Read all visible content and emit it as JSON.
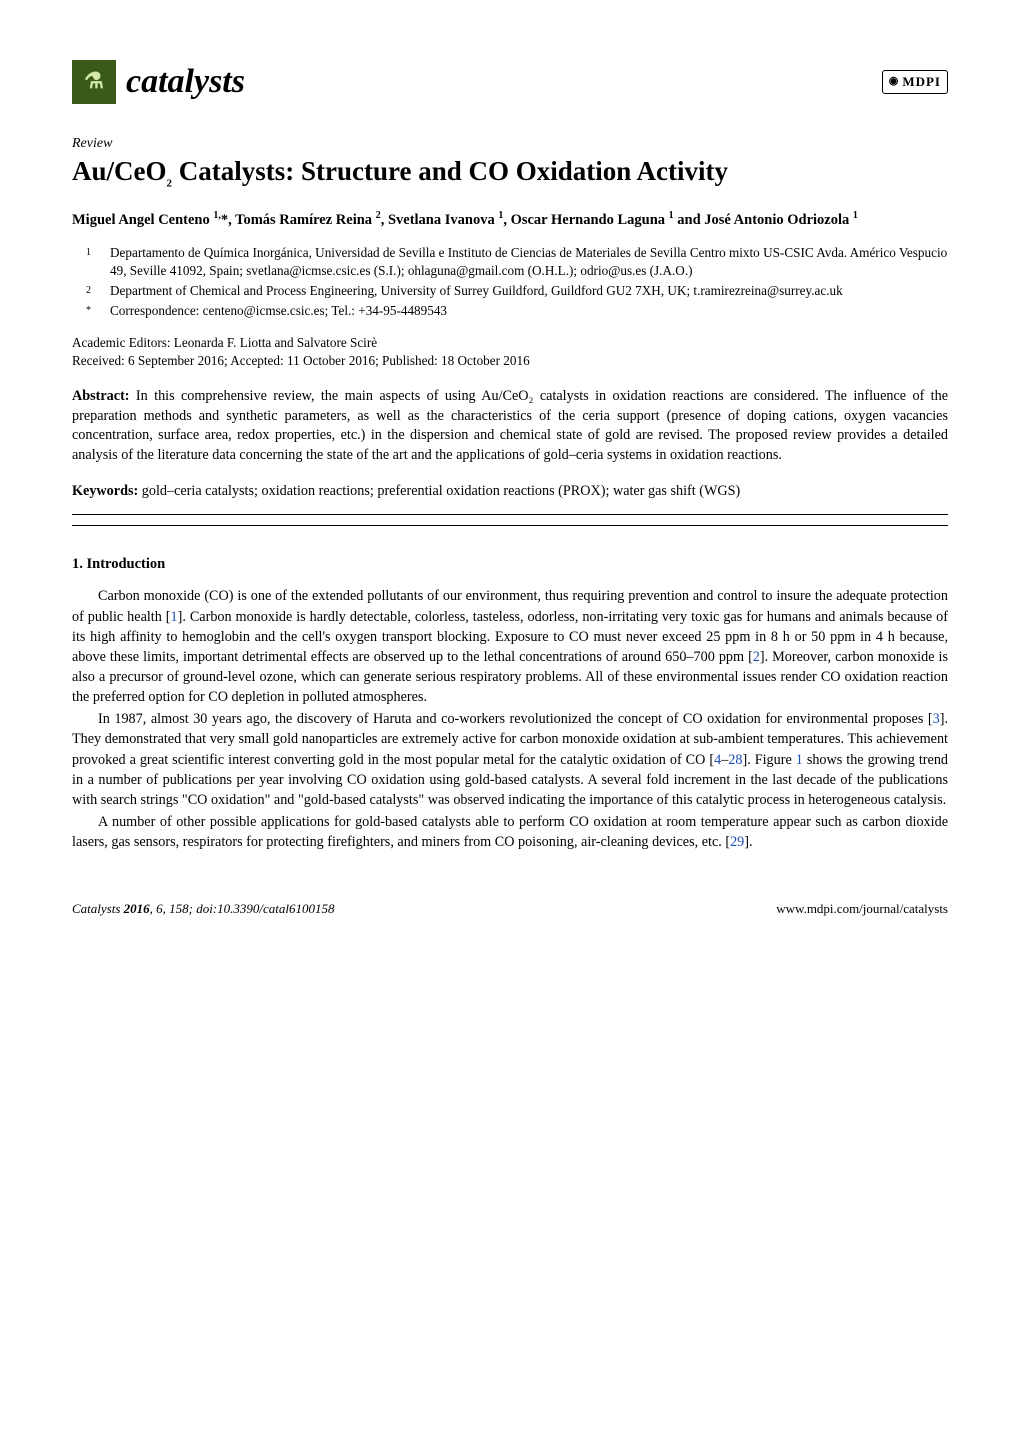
{
  "header": {
    "journal_name": "catalysts",
    "logo_glyph": "⚗",
    "publisher": "MDPI"
  },
  "article": {
    "type": "Review",
    "title_html": "Au/CeO<span class=\"sub\">2</span> Catalysts: Structure and CO Oxidation Activity",
    "authors_html": "Miguel Angel Centeno <sup>1,</sup>*, Tomás Ramírez Reina <sup>2</sup>, Svetlana Ivanova <sup>1</sup>, Oscar Hernando Laguna <sup>1</sup> and José Antonio Odriozola <sup>1</sup>",
    "affiliations": [
      {
        "num": "1",
        "text": "Departamento de Química Inorgánica, Universidad de Sevilla e Instituto de Ciencias de Materiales de Sevilla Centro mixto US-CSIC Avda. Américo Vespucio 49, Seville 41092, Spain; svetlana@icmse.csic.es (S.I.); ohlaguna@gmail.com (O.H.L.); odrio@us.es (J.A.O.)"
      },
      {
        "num": "2",
        "text": "Department of Chemical and Process Engineering, University of Surrey Guildford, Guildford GU2 7XH, UK; t.ramirezreina@surrey.ac.uk"
      },
      {
        "num": "*",
        "text": "Correspondence: centeno@icmse.csic.es; Tel.: +34-95-4489543"
      }
    ],
    "editors_line": "Academic Editors: Leonarda F. Liotta and Salvatore Scirè",
    "history_line": "Received: 6 September 2016; Accepted: 11 October 2016; Published: 18 October 2016",
    "abstract_label": "Abstract:",
    "abstract_text": "In this comprehensive review, the main aspects of using Au/CeO₂ catalysts in oxidation reactions are considered. The influence of the preparation methods and synthetic parameters, as well as the characteristics of the ceria support (presence of doping cations, oxygen vacancies concentration, surface area, redox properties, etc.) in the dispersion and chemical state of gold are revised. The proposed review provides a detailed analysis of the literature data concerning the state of the art and the applications of gold–ceria systems in oxidation reactions.",
    "keywords_label": "Keywords:",
    "keywords_text": "gold–ceria catalysts; oxidation reactions; preferential oxidation reactions (PROX); water gas shift (WGS)"
  },
  "sections": {
    "intro_heading": "1. Introduction",
    "paragraphs": [
      "Carbon monoxide (CO) is one of the extended pollutants of our environment, thus requiring prevention and control to insure the adequate protection of public health [<span class=\"ref-link\">1</span>]. Carbon monoxide is hardly detectable, colorless, tasteless, odorless, non-irritating very toxic gas for humans and animals because of its high affinity to hemoglobin and the cell's oxygen transport blocking. Exposure to CO must never exceed 25 ppm in 8 h or 50 ppm in 4 h because, above these limits, important detrimental effects are observed up to the lethal concentrations of around 650–700 ppm [<span class=\"ref-link\">2</span>]. Moreover, carbon monoxide is also a precursor of ground-level ozone, which can generate serious respiratory problems. All of these environmental issues render CO oxidation reaction the preferred option for CO depletion in polluted atmospheres.",
      "In 1987, almost 30 years ago, the discovery of Haruta and co-workers revolutionized the concept of CO oxidation for environmental proposes [<span class=\"ref-link\">3</span>]. They demonstrated that very small gold nanoparticles are extremely active for carbon monoxide oxidation at sub-ambient temperatures. This achievement provoked a great scientific interest converting gold in the most popular metal for the catalytic oxidation of CO [<span class=\"ref-link\">4</span>–<span class=\"ref-link\">28</span>]. Figure <span class=\"ref-link\">1</span> shows the growing trend in a number of publications per year involving CO oxidation using gold-based catalysts. A several fold increment in the last decade of the publications with search strings \"CO oxidation\" and \"gold-based catalysts\" was observed indicating the importance of this catalytic process in heterogeneous catalysis.",
      "A number of other possible applications for gold-based catalysts able to perform CO oxidation at room temperature appear such as carbon dioxide lasers, gas sensors, respirators for protecting firefighters, and miners from CO poisoning, air-cleaning devices, etc. [<span class=\"ref-link\">29</span>]."
    ]
  },
  "footer": {
    "left_html": "<i>Catalysts</i> <b>2016</b>, <i>6</i>, 158; doi:10.3390/catal6100158",
    "right": "www.mdpi.com/journal/catalysts"
  },
  "colors": {
    "background": "#ffffff",
    "text": "#000000",
    "logo_bg": "#3a5a1a",
    "logo_fg": "#d4e8a8",
    "ref_link": "#1a4db3"
  }
}
